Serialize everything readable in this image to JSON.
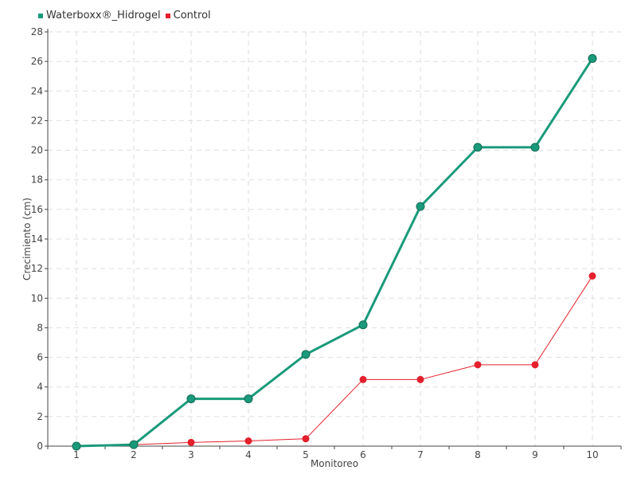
{
  "chart_data": {
    "type": "line",
    "title": "",
    "xlabel": "Monitoreo",
    "ylabel": "Crecimiento (cm)",
    "x": [
      1,
      2,
      3,
      4,
      5,
      6,
      7,
      8,
      9,
      10
    ],
    "x_tick_labels": [
      "1",
      "2",
      "3",
      "4",
      "5",
      "6",
      "7",
      "8",
      "9",
      "10"
    ],
    "ylim": [
      0,
      28
    ],
    "y_tick_labels": [
      "0",
      "2",
      "4",
      "6",
      "8",
      "10",
      "12",
      "14",
      "16",
      "18",
      "20",
      "22",
      "24",
      "26",
      "28"
    ],
    "grid": true,
    "legend_position": "top-left",
    "series": [
      {
        "name": "Waterboxx®_Hidrogel",
        "color": "#1a9a7a",
        "values": [
          0,
          0.1,
          3.2,
          3.2,
          6.2,
          8.2,
          16.2,
          20.2,
          20.2,
          26.2
        ]
      },
      {
        "name": "Control",
        "color": "#e3202c",
        "values": [
          0,
          0.1,
          0.25,
          0.35,
          0.5,
          4.5,
          4.5,
          5.5,
          5.5,
          11.5
        ]
      }
    ]
  }
}
